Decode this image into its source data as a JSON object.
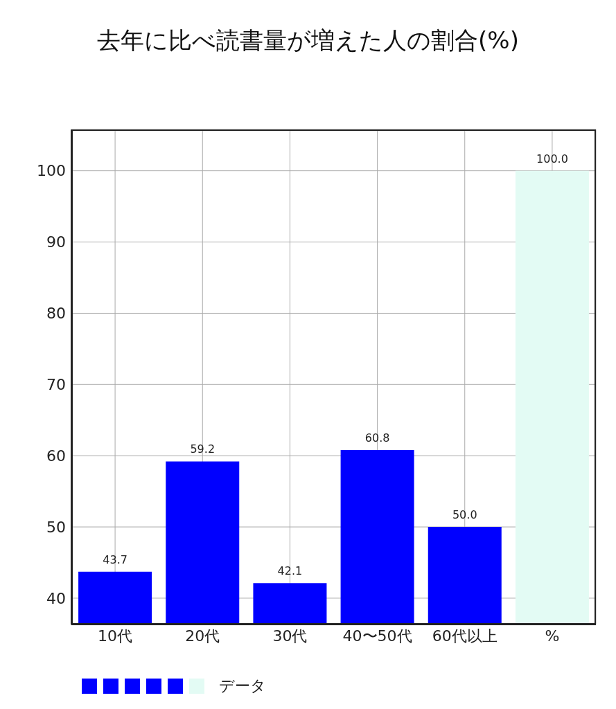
{
  "chart_data": {
    "type": "bar",
    "title": "去年に比べ読書量が増えた人の割合(%)",
    "categories": [
      "10代",
      "20代",
      "30代",
      "40〜50代",
      "60代以上",
      "%"
    ],
    "series": [
      {
        "name": "データ",
        "values": [
          43.7,
          59.2,
          42.1,
          60.8,
          50.0,
          100.0
        ],
        "colors": [
          "#0000ff",
          "#0000ff",
          "#0000ff",
          "#0000ff",
          "#0000ff",
          "#e3fbf4"
        ],
        "value_labels": [
          "43.7",
          "59.2",
          "42.1",
          "60.8",
          "50.0",
          "100.0"
        ]
      }
    ],
    "ylim": [
      36.3,
      105.8
    ],
    "yticks": [
      40,
      50,
      60,
      70,
      80,
      90,
      100
    ],
    "grid": true,
    "legend": "bottom"
  }
}
